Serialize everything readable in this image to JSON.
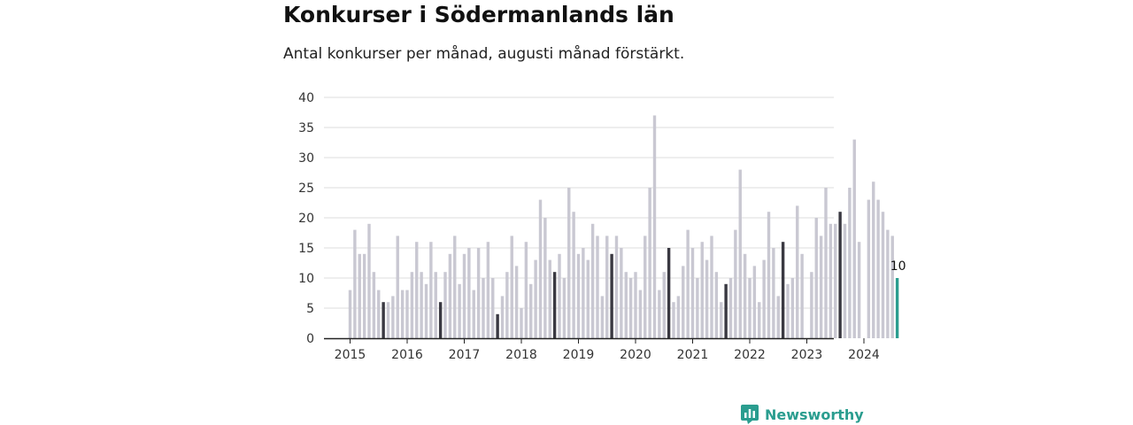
{
  "title": "Konkurser i Södermanlands län",
  "subtitle": "Antal konkurser per månad, augusti månad förstärkt.",
  "brand": {
    "name": "Newsworthy",
    "color": "#2a9d8f"
  },
  "chart_data": {
    "type": "bar",
    "title": "Konkurser i Södermanlands län",
    "subtitle": "Antal konkurser per månad, augusti månad förstärkt.",
    "xlabel": "",
    "ylabel": "",
    "ylim": [
      0,
      40
    ],
    "yticks": [
      "0",
      "5",
      "10",
      "15",
      "20",
      "25",
      "30",
      "35",
      "40"
    ],
    "xticks": [
      "2015",
      "2016",
      "2017",
      "2018",
      "2019",
      "2020",
      "2021",
      "2022",
      "2023",
      "2024"
    ],
    "grid": true,
    "start": "2015-01",
    "highlight_month": "augusti",
    "colors": {
      "normal": "#c9c8d2",
      "august": "#3a3942",
      "latest": "#2a9d8f"
    },
    "latest_label": "10",
    "values": [
      8,
      18,
      14,
      14,
      19,
      11,
      8,
      6,
      6,
      7,
      17,
      8,
      8,
      11,
      16,
      11,
      9,
      16,
      11,
      6,
      11,
      14,
      17,
      9,
      14,
      15,
      8,
      15,
      10,
      16,
      10,
      4,
      7,
      11,
      17,
      12,
      5,
      16,
      9,
      13,
      23,
      20,
      13,
      11,
      14,
      10,
      25,
      21,
      14,
      15,
      13,
      19,
      17,
      7,
      17,
      14,
      17,
      15,
      11,
      10,
      11,
      8,
      17,
      25,
      37,
      8,
      11,
      15,
      6,
      7,
      12,
      18,
      15,
      10,
      16,
      13,
      17,
      11,
      6,
      9,
      10,
      18,
      28,
      14,
      10,
      12,
      6,
      13,
      21,
      15,
      7,
      16,
      9,
      10,
      22,
      14,
      0,
      11,
      20,
      17,
      25,
      19,
      19,
      21,
      19,
      25,
      33,
      16,
      0,
      23,
      26,
      23,
      21,
      18,
      17,
      10
    ]
  }
}
